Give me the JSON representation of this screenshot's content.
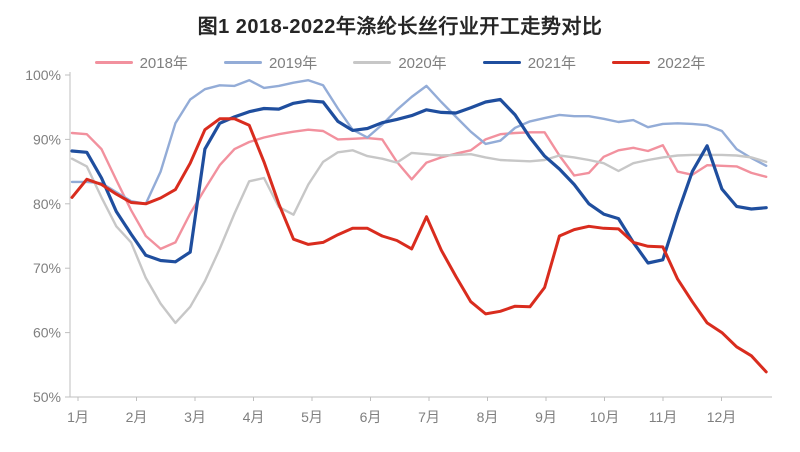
{
  "chart_data": {
    "type": "line",
    "title": "图1 2018-2022年涤纶长丝行业开工走势对比",
    "xlabel": "",
    "ylabel": "",
    "x_axis": {
      "tick_labels": [
        "1月",
        "2月",
        "3月",
        "4月",
        "5月",
        "6月",
        "7月",
        "8月",
        "9月",
        "10月",
        "11月",
        "12月"
      ],
      "points_per_month": 4
    },
    "y_axis": {
      "tick_labels": [
        "100%",
        "90%",
        "80%",
        "70%",
        "60%",
        "50%"
      ],
      "tick_values": [
        100,
        90,
        80,
        70,
        60,
        50
      ],
      "min": 50,
      "max": 100,
      "unit": "%"
    },
    "grid": false,
    "legend_position": "top",
    "series": [
      {
        "name": "2018年",
        "color": "#F2919E",
        "stroke_width": 2.4,
        "values": [
          91.0,
          90.8,
          88.5,
          83.7,
          79.0,
          75.0,
          73.0,
          74.0,
          78.5,
          82.3,
          86.0,
          88.5,
          89.6,
          90.3,
          90.8,
          91.2,
          91.5,
          91.3,
          90.0,
          90.1,
          90.2,
          90.0,
          86.5,
          83.8,
          86.4,
          87.2,
          87.8,
          88.3,
          90.0,
          90.8,
          91.0,
          91.1,
          91.1,
          87.5,
          84.4,
          84.8,
          87.3,
          88.3,
          88.7,
          88.2,
          89.1,
          85.0,
          84.5,
          86.0,
          85.9,
          85.8,
          84.8,
          84.2
        ]
      },
      {
        "name": "2019年",
        "color": "#93ACD7",
        "stroke_width": 2.4,
        "values": [
          83.4,
          83.4,
          83.2,
          81.8,
          80.4,
          80.0,
          85.0,
          92.5,
          96.2,
          97.8,
          98.4,
          98.3,
          99.2,
          98.0,
          98.3,
          98.8,
          99.2,
          98.4,
          94.8,
          91.5,
          90.3,
          92.3,
          94.6,
          96.6,
          98.3,
          95.8,
          93.5,
          91.2,
          89.3,
          89.8,
          91.8,
          92.8,
          93.3,
          93.8,
          93.6,
          93.6,
          93.2,
          92.7,
          93.0,
          91.9,
          92.4,
          92.5,
          92.4,
          92.2,
          91.3,
          88.5,
          87.1,
          85.9
        ]
      },
      {
        "name": "2020年",
        "color": "#C7C7C7",
        "stroke_width": 2.4,
        "values": [
          87.0,
          85.8,
          81.0,
          76.5,
          74.0,
          68.5,
          64.5,
          61.5,
          64.0,
          68.0,
          73.0,
          78.5,
          83.5,
          84.0,
          79.5,
          78.3,
          83.0,
          86.5,
          88.0,
          88.3,
          87.4,
          87.0,
          86.4,
          87.9,
          87.7,
          87.5,
          87.6,
          87.7,
          87.2,
          86.8,
          86.7,
          86.6,
          86.8,
          87.5,
          87.2,
          86.8,
          86.3,
          85.1,
          86.3,
          86.8,
          87.2,
          87.5,
          87.6,
          87.6,
          87.6,
          87.5,
          87.2,
          86.5
        ]
      },
      {
        "name": "2021年",
        "color": "#1F4E9E",
        "stroke_width": 3.2,
        "values": [
          88.2,
          88.0,
          84.0,
          78.8,
          75.3,
          72.0,
          71.2,
          71.0,
          72.5,
          88.5,
          92.5,
          93.5,
          94.3,
          94.8,
          94.7,
          95.6,
          96.0,
          95.8,
          92.8,
          91.4,
          91.7,
          92.6,
          93.1,
          93.7,
          94.6,
          94.2,
          94.1,
          94.9,
          95.8,
          96.2,
          93.8,
          90.3,
          87.4,
          85.4,
          83.0,
          80.0,
          78.4,
          77.7,
          74.0,
          70.8,
          71.3,
          78.5,
          85.0,
          89.0,
          82.3,
          79.6,
          79.2,
          79.4
        ]
      },
      {
        "name": "2022年",
        "color": "#D92C1E",
        "stroke_width": 3.0,
        "values": [
          81.0,
          83.8,
          83.0,
          81.5,
          80.2,
          80.0,
          80.9,
          82.2,
          86.3,
          91.5,
          93.2,
          93.2,
          92.2,
          86.5,
          80.0,
          74.5,
          73.7,
          74.0,
          75.2,
          76.2,
          76.2,
          75.0,
          74.3,
          73.0,
          78.0,
          72.8,
          68.7,
          64.8,
          62.9,
          63.3,
          64.1,
          64.0,
          67.0,
          75.0,
          76.0,
          76.5,
          76.2,
          76.1,
          74.0,
          73.4,
          73.3,
          68.3,
          64.8,
          61.5,
          60.0,
          57.8,
          56.4,
          53.9
        ]
      }
    ]
  },
  "colors": {
    "background": "#FFFFFF",
    "axis_line": "#BFBFBF",
    "tick_text": "#7F7F7F",
    "legend_text": "#7F7F7F",
    "title_text": "#262626"
  }
}
